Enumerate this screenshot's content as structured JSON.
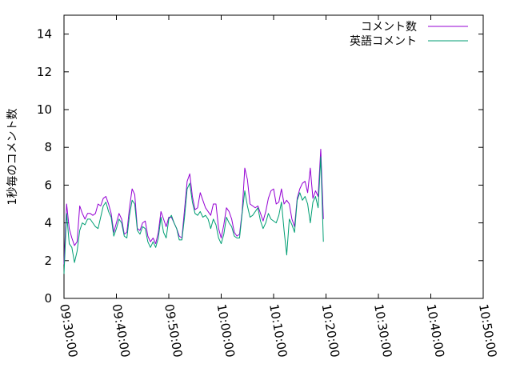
{
  "chart_data": {
    "type": "line",
    "title": "",
    "xlabel": "",
    "ylabel": "1秒毎のコメント数",
    "x_start": "09:30:00",
    "x_step_seconds": 30,
    "xlim": [
      "09:30:00",
      "10:50:00"
    ],
    "xticks": [
      "09:30:00",
      "09:40:00",
      "09:50:00",
      "10:00:00",
      "10:10:00",
      "10:20:00",
      "10:30:00",
      "10:40:00",
      "10:50:00"
    ],
    "ylim": [
      0,
      15
    ],
    "yticks": [
      "0",
      "2",
      "4",
      "6",
      "8",
      "10",
      "12",
      "14"
    ],
    "grid": false,
    "legend_position": "top-right",
    "series": [
      {
        "name": "コメント数",
        "color": "#9400d3",
        "values": [
          1.8,
          5.0,
          3.7,
          3.2,
          2.8,
          3.0,
          4.9,
          4.5,
          4.2,
          4.5,
          4.5,
          4.4,
          4.5,
          5.0,
          4.9,
          5.3,
          5.4,
          5.0,
          4.5,
          3.5,
          4.0,
          4.5,
          4.2,
          3.4,
          3.5,
          4.8,
          5.8,
          5.5,
          3.7,
          3.6,
          4.0,
          4.1,
          3.3,
          3.0,
          3.2,
          2.9,
          3.5,
          4.6,
          4.2,
          3.8,
          4.3,
          4.3,
          4.0,
          3.7,
          3.3,
          3.2,
          4.7,
          6.2,
          6.6,
          5.4,
          4.7,
          4.8,
          5.6,
          5.2,
          4.8,
          4.6,
          4.4,
          5.0,
          5.0,
          3.7,
          3.2,
          3.9,
          4.8,
          4.6,
          4.2,
          3.5,
          3.3,
          3.4,
          4.6,
          6.9,
          6.3,
          5.0,
          4.9,
          4.8,
          4.9,
          4.5,
          4.1,
          4.6,
          5.3,
          5.7,
          5.8,
          5.0,
          5.1,
          5.8,
          5.0,
          5.2,
          5.0,
          4.2,
          3.8,
          5.3,
          5.8,
          6.1,
          6.2,
          5.6,
          6.9,
          5.3,
          5.7,
          5.4,
          7.9,
          4.2
        ]
      },
      {
        "name": "英語コメント",
        "color": "#009e73",
        "values": [
          1.3,
          4.5,
          2.9,
          2.7,
          1.9,
          2.5,
          3.6,
          4.0,
          3.9,
          4.2,
          4.2,
          4.0,
          3.8,
          3.7,
          4.3,
          4.9,
          5.1,
          4.6,
          4.3,
          3.3,
          3.7,
          4.2,
          4.0,
          3.3,
          3.2,
          4.4,
          5.2,
          5.0,
          3.6,
          3.4,
          3.8,
          3.7,
          3.0,
          2.7,
          3.0,
          2.7,
          3.2,
          4.3,
          3.5,
          3.2,
          4.2,
          4.4,
          4.0,
          3.7,
          3.1,
          3.1,
          4.3,
          5.8,
          6.1,
          5.1,
          4.5,
          4.4,
          4.6,
          4.3,
          4.4,
          4.2,
          3.7,
          4.2,
          3.9,
          3.2,
          2.9,
          3.4,
          4.3,
          4.0,
          3.8,
          3.3,
          3.2,
          3.2,
          4.5,
          5.7,
          4.9,
          4.3,
          4.4,
          4.6,
          4.8,
          4.1,
          3.7,
          4.0,
          4.5,
          4.2,
          4.1,
          4.0,
          4.4,
          5.1,
          3.6,
          2.3,
          4.2,
          3.9,
          3.5,
          5.2,
          5.6,
          5.2,
          5.4,
          5.0,
          4.0,
          5.1,
          5.4,
          4.8,
          7.5,
          3.0
        ]
      }
    ]
  }
}
